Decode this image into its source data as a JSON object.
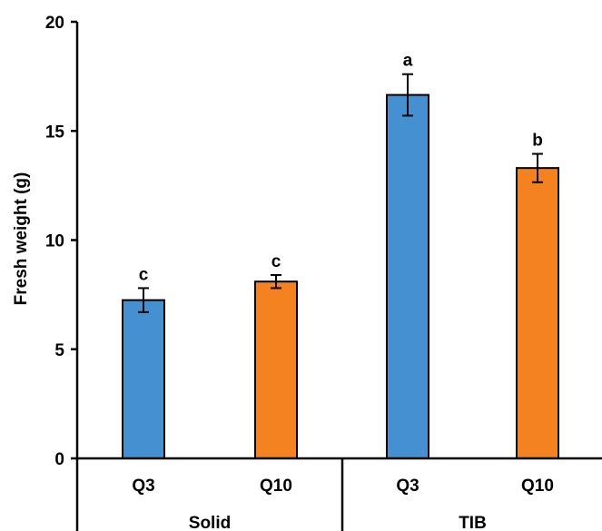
{
  "chart_data": {
    "type": "bar",
    "title": "",
    "xlabel": "",
    "ylabel": "Fresh weight (g)",
    "ylim": [
      0,
      20
    ],
    "yticks": [
      "0",
      "5",
      "10",
      "15",
      "20"
    ],
    "grid": false,
    "groups": [
      {
        "label": "Solid",
        "bars": [
          {
            "category": "Q3",
            "value": 7.25,
            "error": 0.55,
            "significance": "c",
            "color": "#4490D0"
          },
          {
            "category": "Q10",
            "value": 8.1,
            "error": 0.3,
            "significance": "c",
            "color": "#F58220"
          }
        ]
      },
      {
        "label": "TIB",
        "bars": [
          {
            "category": "Q3",
            "value": 16.65,
            "error": 0.95,
            "significance": "a",
            "color": "#4490D0"
          },
          {
            "category": "Q10",
            "value": 13.3,
            "error": 0.65,
            "significance": "b",
            "color": "#F58220"
          }
        ]
      }
    ]
  }
}
